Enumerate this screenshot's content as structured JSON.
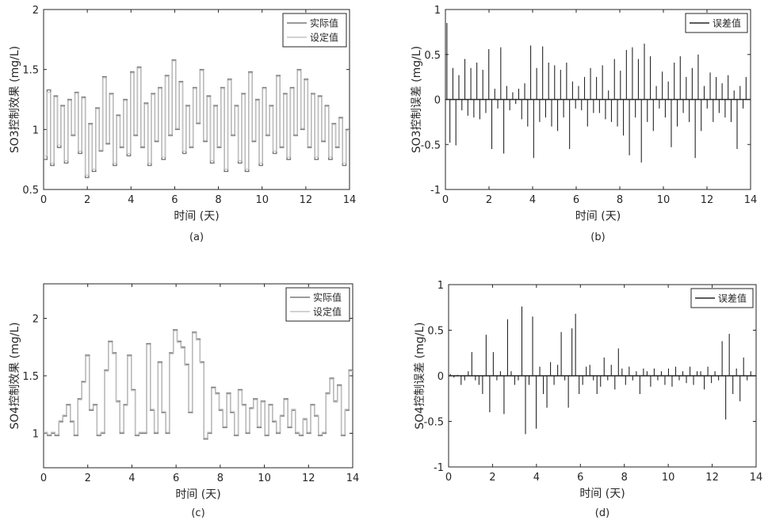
{
  "chart_data": [
    {
      "type": "line",
      "panel": "(a)",
      "xlabel": "时间 (天)",
      "ylabel": "SO3控制效果 (mg/L)",
      "xlim": [
        0,
        14
      ],
      "ylim": [
        0.5,
        2
      ],
      "xticks": [
        0,
        2,
        4,
        6,
        8,
        10,
        12,
        14
      ],
      "yticks": [
        0.5,
        1,
        1.5,
        2
      ],
      "yticklabels": [
        "0.5",
        "1",
        "1.5",
        "2"
      ],
      "legend": "top-right",
      "series": [
        {
          "name": "实际值",
          "color": "#7a7a7a",
          "values": [
            0.75,
            1.33,
            0.7,
            1.28,
            0.85,
            1.2,
            0.72,
            1.25,
            0.95,
            1.31,
            0.8,
            1.27,
            0.6,
            1.05,
            0.65,
            1.18,
            0.82,
            1.44,
            0.88,
            1.3,
            0.7,
            1.12,
            0.85,
            1.25,
            0.78,
            1.48,
            0.95,
            1.52,
            0.85,
            1.22,
            0.7,
            1.3,
            0.9,
            1.35,
            0.75,
            1.45,
            0.95,
            1.58,
            1.0,
            1.4,
            0.8,
            1.2,
            0.85,
            1.35,
            1.05,
            1.5,
            0.9,
            1.28,
            0.72,
            1.2,
            0.85,
            1.35,
            0.65,
            1.42,
            0.95,
            1.2,
            0.72,
            1.3,
            0.65,
            1.48,
            0.9,
            1.25,
            0.7,
            1.35,
            0.95,
            1.2,
            0.8,
            1.45,
            0.85,
            1.3,
            0.75,
            1.35,
            0.95,
            1.5,
            1.0,
            1.42,
            0.85,
            1.3,
            0.75,
            1.28,
            0.9,
            1.2,
            0.75,
            1.05,
            0.85,
            1.1,
            0.7,
            1.0
          ]
        },
        {
          "name": "设定值",
          "color": "#c4c4c4",
          "values": [
            0.78,
            1.31,
            0.72,
            1.27,
            0.87,
            1.19,
            0.74,
            1.24,
            0.96,
            1.3,
            0.82,
            1.26,
            0.62,
            1.04,
            0.67,
            1.17,
            0.83,
            1.43,
            0.89,
            1.29,
            0.72,
            1.11,
            0.86,
            1.24,
            0.8,
            1.47,
            0.96,
            1.51,
            0.86,
            1.21,
            0.72,
            1.29,
            0.91,
            1.34,
            0.77,
            1.44,
            0.96,
            1.57,
            1.01,
            1.39,
            0.82,
            1.19,
            0.86,
            1.34,
            1.06,
            1.49,
            0.91,
            1.27,
            0.74,
            1.19,
            0.86,
            1.34,
            0.67,
            1.41,
            0.96,
            1.19,
            0.74,
            1.29,
            0.67,
            1.47,
            0.91,
            1.24,
            0.72,
            1.34,
            0.96,
            1.19,
            0.82,
            1.44,
            0.86,
            1.29,
            0.77,
            1.34,
            0.96,
            1.49,
            1.01,
            1.41,
            0.86,
            1.29,
            0.77,
            1.27,
            0.91,
            1.19,
            0.77,
            1.04,
            0.86,
            1.09,
            0.72,
            0.99
          ]
        }
      ]
    },
    {
      "type": "bar",
      "panel": "(b)",
      "xlabel": "时间 (天)",
      "ylabel": "SO3控制误差 (mg/L)",
      "xlim": [
        0,
        14
      ],
      "ylim": [
        -1,
        1
      ],
      "xticks": [
        0,
        2,
        4,
        6,
        8,
        10,
        12,
        14
      ],
      "yticks": [
        -1,
        -0.5,
        0,
        0.5,
        1
      ],
      "yticklabels": [
        "-1",
        "-0.5",
        "0",
        "0.5",
        "1"
      ],
      "legend": "top-right",
      "series": [
        {
          "name": "误差值",
          "color": "#262626",
          "values": [
            0.85,
            -0.48,
            0.35,
            -0.51,
            0.27,
            -0.12,
            0.45,
            -0.18,
            0.35,
            -0.2,
            0.41,
            -0.22,
            0.33,
            -0.15,
            0.56,
            -0.55,
            0.12,
            -0.1,
            0.58,
            -0.6,
            0.15,
            -0.12,
            0.08,
            -0.05,
            0.12,
            -0.22,
            0.18,
            -0.3,
            0.6,
            -0.65,
            0.35,
            -0.25,
            0.59,
            -0.2,
            0.41,
            -0.3,
            0.38,
            -0.35,
            0.33,
            -0.2,
            0.41,
            -0.55,
            0.2,
            -0.1,
            0.15,
            -0.12,
            0.25,
            -0.3,
            0.35,
            -0.15,
            0.25,
            -0.15,
            0.38,
            -0.22,
            0.1,
            -0.25,
            0.45,
            -0.3,
            0.32,
            -0.4,
            0.55,
            -0.62,
            0.58,
            -0.2,
            0.45,
            -0.7,
            0.62,
            -0.25,
            0.48,
            -0.35,
            0.15,
            -0.1,
            0.31,
            -0.2,
            0.2,
            -0.53,
            0.41,
            -0.3,
            0.48,
            -0.15,
            0.25,
            -0.25,
            0.35,
            -0.65,
            0.5,
            -0.35,
            0.15,
            -0.1,
            0.3,
            -0.25,
            0.25,
            -0.15,
            0.18,
            -0.2,
            0.27,
            -0.25,
            0.1,
            -0.55,
            0.15,
            -0.1,
            0.25
          ]
        }
      ]
    },
    {
      "type": "line",
      "panel": "(c)",
      "xlabel": "时间 (天)",
      "ylabel": "SO4控制效果 (mg/L)",
      "xlim": [
        0,
        14
      ],
      "ylim": [
        0.7,
        2.3
      ],
      "xticks": [
        0,
        2,
        4,
        6,
        8,
        10,
        12,
        14
      ],
      "yticks": [
        1,
        1.5,
        2
      ],
      "yticklabels": [
        "1",
        "1.5",
        "2"
      ],
      "legend": "top-right",
      "series": [
        {
          "name": "实际值",
          "color": "#7a7a7a",
          "values": [
            1.0,
            0.98,
            1.0,
            0.98,
            1.1,
            1.15,
            1.25,
            1.1,
            0.98,
            1.3,
            1.45,
            1.68,
            1.2,
            1.25,
            0.98,
            1.0,
            1.55,
            1.8,
            1.7,
            1.28,
            1.0,
            1.25,
            1.68,
            1.38,
            0.98,
            1.0,
            1.0,
            1.78,
            1.2,
            1.0,
            1.62,
            1.18,
            1.0,
            1.7,
            1.9,
            1.8,
            1.75,
            1.6,
            1.18,
            1.88,
            1.82,
            1.62,
            0.95,
            1.0,
            1.4,
            1.35,
            1.2,
            1.05,
            1.35,
            1.18,
            0.98,
            1.38,
            1.25,
            1.0,
            1.22,
            1.3,
            1.05,
            1.28,
            0.98,
            1.25,
            1.1,
            1.0,
            1.15,
            1.3,
            1.05,
            1.2,
            1.0,
            0.98,
            1.12,
            1.0,
            1.25,
            1.15,
            0.98,
            1.0,
            1.35,
            1.48,
            1.28,
            1.42,
            0.98,
            1.2,
            1.55
          ]
        },
        {
          "name": "设定值",
          "color": "#c4c4c4",
          "values": [
            1.01,
            0.99,
            1.01,
            0.99,
            1.11,
            1.16,
            1.24,
            1.11,
            0.99,
            1.29,
            1.44,
            1.67,
            1.21,
            1.24,
            0.99,
            1.01,
            1.54,
            1.79,
            1.69,
            1.27,
            1.01,
            1.24,
            1.67,
            1.37,
            0.99,
            1.01,
            1.01,
            1.77,
            1.21,
            1.01,
            1.61,
            1.19,
            1.01,
            1.69,
            1.89,
            1.79,
            1.74,
            1.59,
            1.19,
            1.87,
            1.81,
            1.61,
            0.96,
            1.01,
            1.39,
            1.34,
            1.21,
            1.06,
            1.34,
            1.19,
            0.99,
            1.37,
            1.24,
            1.01,
            1.21,
            1.29,
            1.06,
            1.27,
            0.99,
            1.24,
            1.11,
            1.01,
            1.16,
            1.29,
            1.06,
            1.21,
            1.01,
            0.99,
            1.13,
            1.01,
            1.24,
            1.16,
            0.99,
            1.01,
            1.34,
            1.47,
            1.27,
            1.41,
            0.99,
            1.21,
            1.54
          ]
        }
      ]
    },
    {
      "type": "bar",
      "panel": "(d)",
      "xlabel": "时间 (天)",
      "ylabel": "SO4控制误差 (mg/L)",
      "xlim": [
        0,
        14
      ],
      "ylim": [
        -1,
        1
      ],
      "xticks": [
        0,
        2,
        4,
        6,
        8,
        10,
        12,
        14
      ],
      "yticks": [
        -1,
        -0.5,
        0,
        0.5,
        1
      ],
      "yticklabels": [
        "-1",
        "-0.5",
        "0",
        "0.5",
        "1"
      ],
      "legend": "top-right",
      "series": [
        {
          "name": "误差值",
          "color": "#262626",
          "values": [
            0.02,
            -0.02,
            0.01,
            -0.1,
            -0.05,
            0.05,
            0.26,
            -0.05,
            -0.1,
            -0.2,
            0.45,
            -0.4,
            0.26,
            -0.05,
            0.05,
            -0.42,
            0.62,
            0.05,
            -0.1,
            -0.05,
            0.76,
            -0.64,
            -0.1,
            0.65,
            -0.58,
            0.1,
            -0.2,
            -0.35,
            0.15,
            -0.1,
            0.12,
            0.48,
            -0.05,
            -0.35,
            0.52,
            0.68,
            -0.2,
            -0.1,
            0.1,
            0.12,
            -0.05,
            -0.2,
            -0.12,
            0.2,
            -0.05,
            0.12,
            -0.15,
            0.3,
            0.08,
            -0.1,
            0.1,
            -0.05,
            0.05,
            -0.2,
            0.08,
            0.05,
            -0.12,
            0.08,
            -0.05,
            0.05,
            -0.1,
            0.08,
            -0.12,
            0.1,
            -0.05,
            0.05,
            -0.08,
            0.1,
            -0.1,
            0.05,
            0.05,
            -0.15,
            0.1,
            -0.08,
            0.05,
            -0.05,
            0.38,
            -0.48,
            0.46,
            -0.2,
            0.08,
            -0.28,
            0.2,
            -0.05,
            0.05
          ]
        }
      ]
    }
  ]
}
